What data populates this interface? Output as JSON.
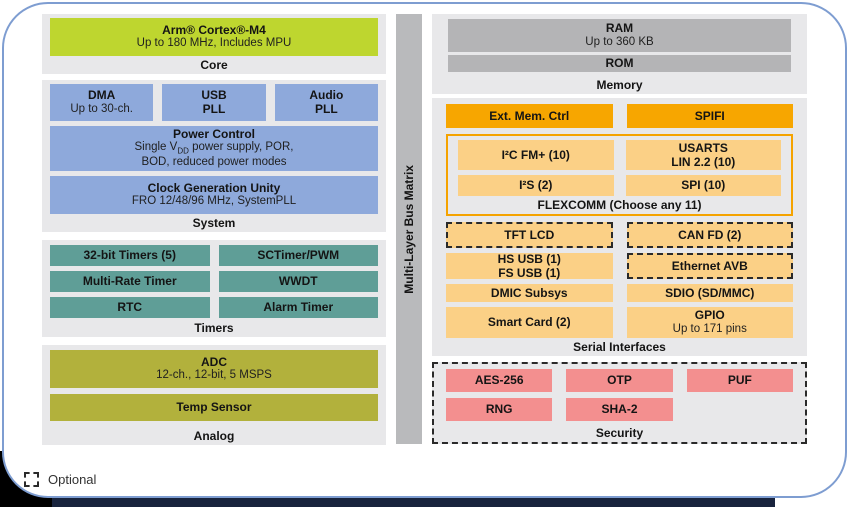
{
  "colors": {
    "frame_border": "#7e9dd1",
    "section_bg": "#e8e8ea",
    "core_lime": "#bed62f",
    "system_blue": "#8ea9db",
    "timers_teal": "#5f9e97",
    "analog_olive": "#b2b13c",
    "memory_gray": "#b4b4b6",
    "bus_gray": "#b9babc",
    "orange": "#f7a600",
    "light_orange": "#fbd086",
    "security_salmon": "#f38f8f",
    "flexcomm_border": "#f5a300"
  },
  "core": {
    "label": "Core",
    "cpu_title": "Arm® Cortex®-M4",
    "cpu_subtitle": "Up to 180 MHz, Includes MPU"
  },
  "system": {
    "label": "System",
    "dma_title": "DMA",
    "dma_subtitle": "Up to 30-ch.",
    "usb_pll_line1": "USB",
    "usb_pll_line2": "PLL",
    "audio_pll_line1": "Audio",
    "audio_pll_line2": "PLL",
    "power_title": "Power Control",
    "power_line1_pre": "Single V",
    "power_line1_sub": "DD",
    "power_line1_post": " power supply, POR,",
    "power_line2": "BOD, reduced power modes",
    "clock_title": "Clock Generation Unity",
    "clock_subtitle": "FRO 12/48/96 MHz, SystemPLL"
  },
  "timers": {
    "label": "Timers",
    "cells": [
      "32-bit Timers (5)",
      "SCTimer/PWM",
      "Multi-Rate Timer",
      "WWDT",
      "RTC",
      "Alarm Timer"
    ]
  },
  "analog": {
    "label": "Analog",
    "adc_title": "ADC",
    "adc_subtitle": "12-ch., 12-bit, 5 MSPS",
    "temp_title": "Temp Sensor"
  },
  "bus_matrix": {
    "label": "Multi-Layer Bus Matrix"
  },
  "memory": {
    "label": "Memory",
    "ram_title": "RAM",
    "ram_subtitle": "Up to 360 KB",
    "rom_title": "ROM"
  },
  "serial": {
    "label": "Serial Interfaces",
    "ext_mem": "Ext. Mem. Ctrl",
    "spifi": "SPIFI",
    "flexcomm": {
      "label": "FLEXCOMM (Choose any 11)",
      "i2c": "I²C FM+ (10)",
      "usarts_line1": "USARTS",
      "usarts_line2": "LIN 2.2 (10)",
      "i2s": "I²S (2)",
      "spi": "SPI (10)"
    },
    "tft_lcd": "TFT LCD",
    "can_fd": "CAN FD (2)",
    "hs_usb_line1": "HS USB (1)",
    "hs_usb_line2": "FS USB (1)",
    "ethernet": "Ethernet AVB",
    "dmic": "DMIC Subsys",
    "sdio": "SDIO (SD/MMC)",
    "smart_card": "Smart Card (2)",
    "gpio_title": "GPIO",
    "gpio_subtitle": "Up to 171 pins"
  },
  "security": {
    "label": "Security",
    "cells": [
      "AES-256",
      "OTP",
      "PUF",
      "RNG",
      "SHA-2"
    ]
  },
  "legend": {
    "label": "Optional"
  }
}
